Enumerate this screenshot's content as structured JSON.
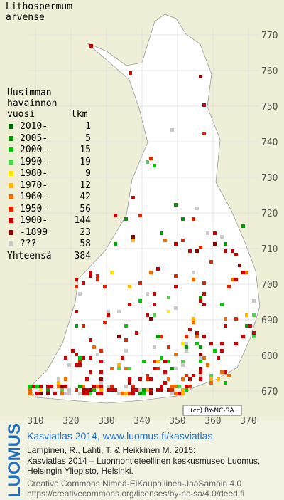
{
  "map": {
    "title": "Lithospermum arvense",
    "legend_header": "Uusimman havainnon vuosi",
    "count_header": "lkm",
    "legend": [
      {
        "label": "2010-",
        "count": 1,
        "color": "#006400"
      },
      {
        "label": "2005-",
        "count": 5,
        "color": "#009a00"
      },
      {
        "label": "2000-",
        "count": 15,
        "color": "#00c800"
      },
      {
        "label": "1990-",
        "count": 19,
        "color": "#4cd44c"
      },
      {
        "label": "1980-",
        "count": 9,
        "color": "#ffe600"
      },
      {
        "label": "1970-",
        "count": 12,
        "color": "#ffb400"
      },
      {
        "label": "1960-",
        "count": 42,
        "color": "#f06a00"
      },
      {
        "label": "1950-",
        "count": 56,
        "color": "#e02800"
      },
      {
        "label": "1900-",
        "count": 144,
        "color": "#c80000"
      },
      {
        "label": "-1899",
        "count": 23,
        "color": "#8c0000"
      },
      {
        "label": "???",
        "count": 58,
        "color": "#c8c8c8"
      }
    ],
    "total_label": "Yhteensä",
    "total": 384,
    "xticks": [
      310,
      320,
      330,
      340,
      350,
      360,
      370
    ],
    "yticks": [
      670,
      680,
      690,
      700,
      710,
      720,
      730,
      740,
      750,
      760,
      770
    ],
    "license_badge": "(cc) BY-NC-SA"
  },
  "credits": {
    "logo": "LUOMUS",
    "headline": "Kasviatlas 2014, www.luomus.fi/kasviatlas",
    "citation": [
      "Lampinen, R., Lahti, T. & Heikkinen M. 2015:",
      "Kasviatlas 2014 – Luonnontieteellinen keskusmuseo Luomus,",
      "Helsingin Yliopisto, Helsinki."
    ],
    "license": [
      "Creative Commons Nimeä-EiKaupallinen-JaaSamoin 4.0",
      "https://creativecommons.org/licenses/by-nc-sa/4.0/deed.fi"
    ]
  }
}
